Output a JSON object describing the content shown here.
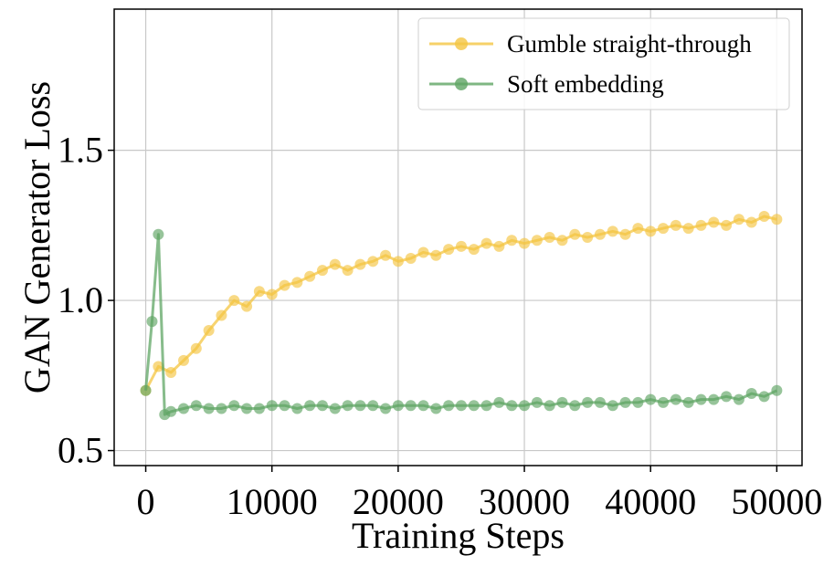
{
  "chart_data": {
    "type": "line",
    "xlabel": "Training Steps",
    "ylabel": "GAN Generator Loss",
    "xlim": [
      -2500,
      52000
    ],
    "ylim": [
      0.45,
      1.97
    ],
    "xticks": [
      0,
      10000,
      20000,
      30000,
      40000,
      50000
    ],
    "xtick_labels": [
      "0",
      "10000",
      "20000",
      "30000",
      "40000",
      "50000"
    ],
    "yticks": [
      0.5,
      1.0,
      1.5
    ],
    "ytick_labels": [
      "0.5",
      "1.0",
      "1.5"
    ],
    "grid": true,
    "legend_position": "top-right",
    "colors": {
      "gumble": "#f4c542",
      "soft": "#5fa564",
      "grid": "#c8c8c8"
    },
    "series": [
      {
        "name": "Gumble straight-through",
        "color": "#f4c542",
        "x": [
          0,
          1000,
          2000,
          3000,
          4000,
          5000,
          6000,
          7000,
          8000,
          9000,
          10000,
          11000,
          12000,
          13000,
          14000,
          15000,
          16000,
          17000,
          18000,
          19000,
          20000,
          21000,
          22000,
          23000,
          24000,
          25000,
          26000,
          27000,
          28000,
          29000,
          30000,
          31000,
          32000,
          33000,
          34000,
          35000,
          36000,
          37000,
          38000,
          39000,
          40000,
          41000,
          42000,
          43000,
          44000,
          45000,
          46000,
          47000,
          48000,
          49000,
          50000
        ],
        "y": [
          0.7,
          0.78,
          0.76,
          0.8,
          0.84,
          0.9,
          0.95,
          1.0,
          0.98,
          1.03,
          1.02,
          1.05,
          1.06,
          1.08,
          1.1,
          1.12,
          1.1,
          1.12,
          1.13,
          1.15,
          1.13,
          1.14,
          1.16,
          1.15,
          1.17,
          1.18,
          1.17,
          1.19,
          1.18,
          1.2,
          1.19,
          1.2,
          1.21,
          1.2,
          1.22,
          1.21,
          1.22,
          1.23,
          1.22,
          1.24,
          1.23,
          1.24,
          1.25,
          1.24,
          1.25,
          1.26,
          1.25,
          1.27,
          1.26,
          1.28,
          1.27
        ]
      },
      {
        "name": "Soft embedding",
        "color": "#5fa564",
        "x": [
          0,
          500,
          1000,
          1500,
          2000,
          3000,
          4000,
          5000,
          6000,
          7000,
          8000,
          9000,
          10000,
          11000,
          12000,
          13000,
          14000,
          15000,
          16000,
          17000,
          18000,
          19000,
          20000,
          21000,
          22000,
          23000,
          24000,
          25000,
          26000,
          27000,
          28000,
          29000,
          30000,
          31000,
          32000,
          33000,
          34000,
          35000,
          36000,
          37000,
          38000,
          39000,
          40000,
          41000,
          42000,
          43000,
          44000,
          45000,
          46000,
          47000,
          48000,
          49000,
          50000
        ],
        "y": [
          0.7,
          0.93,
          1.22,
          0.62,
          0.63,
          0.64,
          0.65,
          0.64,
          0.64,
          0.65,
          0.64,
          0.64,
          0.65,
          0.65,
          0.64,
          0.65,
          0.65,
          0.64,
          0.65,
          0.65,
          0.65,
          0.64,
          0.65,
          0.65,
          0.65,
          0.64,
          0.65,
          0.65,
          0.65,
          0.65,
          0.66,
          0.65,
          0.65,
          0.66,
          0.65,
          0.66,
          0.65,
          0.66,
          0.66,
          0.65,
          0.66,
          0.66,
          0.67,
          0.66,
          0.67,
          0.66,
          0.67,
          0.67,
          0.68,
          0.67,
          0.69,
          0.68,
          0.7
        ]
      }
    ]
  }
}
